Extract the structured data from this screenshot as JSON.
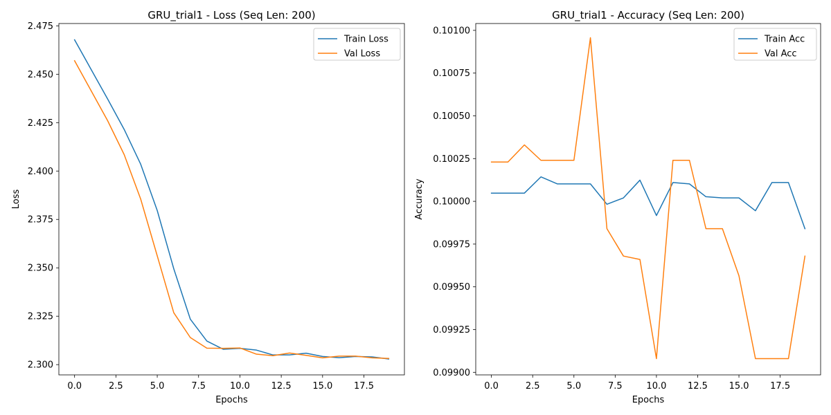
{
  "chart_data": [
    {
      "type": "line",
      "title": "GRU_trial1 - Loss (Seq Len: 200)",
      "xlabel": "Epochs",
      "ylabel": "Loss",
      "xlim": [
        -0.95,
        19.95
      ],
      "ylim": [
        2.2947,
        2.4762
      ],
      "xticks": [
        0,
        2.5,
        5,
        7.5,
        10,
        12.5,
        15,
        17.5
      ],
      "xtick_labels": [
        "0.0",
        "2.5",
        "5.0",
        "7.5",
        "10.0",
        "12.5",
        "15.0",
        "17.5"
      ],
      "yticks": [
        2.3,
        2.325,
        2.35,
        2.375,
        2.4,
        2.425,
        2.45,
        2.475
      ],
      "ytick_labels": [
        "2.300",
        "2.325",
        "2.350",
        "2.375",
        "2.400",
        "2.425",
        "2.450",
        "2.475"
      ],
      "legend_position": "top-right",
      "grid": false,
      "x": [
        0,
        1,
        2,
        3,
        4,
        5,
        6,
        7,
        8,
        9,
        10,
        11,
        12,
        13,
        14,
        15,
        16,
        17,
        18,
        19
      ],
      "series": [
        {
          "name": "Train Loss",
          "color": "#1f77b4",
          "values": [
            2.4678,
            2.4525,
            2.4372,
            2.4215,
            2.4035,
            2.3796,
            2.3495,
            2.3235,
            2.3122,
            2.3079,
            2.3084,
            2.3075,
            2.305,
            2.305,
            2.3059,
            2.3042,
            2.3036,
            2.3042,
            2.304,
            2.3029
          ]
        },
        {
          "name": "Val Loss",
          "color": "#ff7f0e",
          "values": [
            2.457,
            2.4415,
            2.426,
            2.4085,
            2.3855,
            2.3562,
            2.3268,
            2.314,
            2.3085,
            2.3084,
            2.3086,
            2.3054,
            2.3046,
            2.306,
            2.3048,
            2.3035,
            2.3044,
            2.3044,
            2.3035,
            2.3032
          ]
        }
      ]
    },
    {
      "type": "line",
      "title": "GRU_trial1 - Accuracy (Seq Len: 200)",
      "xlabel": "Epochs",
      "ylabel": "Accuracy",
      "xlim": [
        -0.95,
        19.95
      ],
      "ylim": [
        0.098985,
        0.10104
      ],
      "xticks": [
        0,
        2.5,
        5,
        7.5,
        10,
        12.5,
        15,
        17.5
      ],
      "xtick_labels": [
        "0.0",
        "2.5",
        "5.0",
        "7.5",
        "10.0",
        "12.5",
        "15.0",
        "17.5"
      ],
      "yticks": [
        0.099,
        0.09925,
        0.0995,
        0.09975,
        0.1,
        0.10025,
        0.1005,
        0.10075,
        0.101
      ],
      "ytick_labels": [
        "0.09900",
        "0.09925",
        "0.09950",
        "0.09975",
        "0.10000",
        "0.10025",
        "0.10050",
        "0.10075",
        "0.10100"
      ],
      "legend_position": "top-right",
      "grid": false,
      "x": [
        0,
        1,
        2,
        3,
        4,
        5,
        6,
        7,
        8,
        9,
        10,
        11,
        12,
        13,
        14,
        15,
        16,
        17,
        18,
        19
      ],
      "series": [
        {
          "name": "Train Acc",
          "color": "#1f77b4",
          "values": [
            0.100048,
            0.100048,
            0.100048,
            0.100143,
            0.100102,
            0.100102,
            0.100102,
            0.099983,
            0.10002,
            0.100124,
            0.099917,
            0.10011,
            0.100102,
            0.100027,
            0.10002,
            0.10002,
            0.099945,
            0.10011,
            0.10011,
            0.09984
          ]
        },
        {
          "name": "Val Acc",
          "color": "#ff7f0e",
          "values": [
            0.10023,
            0.10023,
            0.10033,
            0.10024,
            0.10024,
            0.10024,
            0.100957,
            0.09984,
            0.09968,
            0.09966,
            0.09908,
            0.10024,
            0.10024,
            0.09984,
            0.09984,
            0.099565,
            0.09908,
            0.09908,
            0.09908,
            0.09968
          ]
        }
      ]
    }
  ]
}
